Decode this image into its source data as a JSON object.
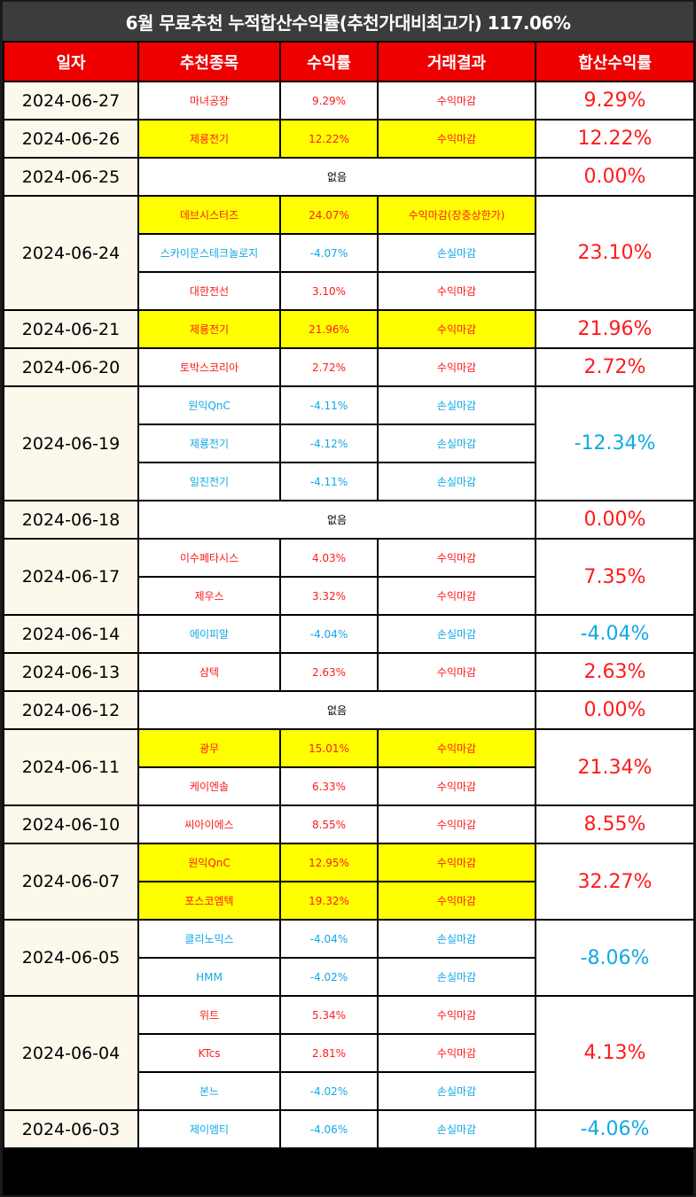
{
  "title": "6월 무료추천 누적합산수익률(추천가대비최고가) 117.06%",
  "headers": [
    "일자",
    "추천종목",
    "수익률",
    "거래결과",
    "합산수익률"
  ],
  "colors": {
    "header_bg": "#ee0000",
    "profit": "#ff1a1a",
    "loss": "#10a8e6",
    "highlight": "#ffff00",
    "date_bg": "#fcf9ec"
  },
  "none_label": "없음",
  "groups": [
    {
      "date": "2024-06-27",
      "total": "9.29%",
      "total_sign": "pos",
      "stocks": [
        {
          "name": "마녀공장",
          "return": "9.29%",
          "result": "수익마감",
          "sign": "pos",
          "hl": false
        }
      ]
    },
    {
      "date": "2024-06-26",
      "total": "12.22%",
      "total_sign": "pos",
      "stocks": [
        {
          "name": "제룡전기",
          "return": "12.22%",
          "result": "수익마감",
          "sign": "pos",
          "hl": true
        }
      ]
    },
    {
      "date": "2024-06-25",
      "total": "0.00%",
      "total_sign": "pos",
      "none": true,
      "stocks": []
    },
    {
      "date": "2024-06-24",
      "total": "23.10%",
      "total_sign": "pos",
      "stocks": [
        {
          "name": "데브시스터즈",
          "return": "24.07%",
          "result": "수익마감(장중상한가)",
          "sign": "pos",
          "hl": true
        },
        {
          "name": "스카이문스테크놀로지",
          "return": "-4.07%",
          "result": "손실마감",
          "sign": "neg",
          "hl": false
        },
        {
          "name": "대한전선",
          "return": "3.10%",
          "result": "수익마감",
          "sign": "pos",
          "hl": false
        }
      ]
    },
    {
      "date": "2024-06-21",
      "total": "21.96%",
      "total_sign": "pos",
      "stocks": [
        {
          "name": "제룡전기",
          "return": "21.96%",
          "result": "수익마감",
          "sign": "pos",
          "hl": true
        }
      ]
    },
    {
      "date": "2024-06-20",
      "total": "2.72%",
      "total_sign": "pos",
      "stocks": [
        {
          "name": "토박스코리아",
          "return": "2.72%",
          "result": "수익마감",
          "sign": "pos",
          "hl": false
        }
      ]
    },
    {
      "date": "2024-06-19",
      "total": "-12.34%",
      "total_sign": "neg",
      "stocks": [
        {
          "name": "원익QnC",
          "return": "-4.11%",
          "result": "손실마감",
          "sign": "neg",
          "hl": false
        },
        {
          "name": "제룡전기",
          "return": "-4.12%",
          "result": "손실마감",
          "sign": "neg",
          "hl": false
        },
        {
          "name": "일진전기",
          "return": "-4.11%",
          "result": "손실마감",
          "sign": "neg",
          "hl": false
        }
      ]
    },
    {
      "date": "2024-06-18",
      "total": "0.00%",
      "total_sign": "pos",
      "none": true,
      "stocks": []
    },
    {
      "date": "2024-06-17",
      "total": "7.35%",
      "total_sign": "pos",
      "stocks": [
        {
          "name": "이수페타시스",
          "return": "4.03%",
          "result": "수익마감",
          "sign": "pos",
          "hl": false
        },
        {
          "name": "제우스",
          "return": "3.32%",
          "result": "수익마감",
          "sign": "pos",
          "hl": false
        }
      ]
    },
    {
      "date": "2024-06-14",
      "total": "-4.04%",
      "total_sign": "neg",
      "stocks": [
        {
          "name": "에이피알",
          "return": "-4.04%",
          "result": "손실마감",
          "sign": "neg",
          "hl": false
        }
      ]
    },
    {
      "date": "2024-06-13",
      "total": "2.63%",
      "total_sign": "pos",
      "stocks": [
        {
          "name": "삼텍",
          "return": "2.63%",
          "result": "수익마감",
          "sign": "pos",
          "hl": false
        }
      ]
    },
    {
      "date": "2024-06-12",
      "total": "0.00%",
      "total_sign": "pos",
      "none": true,
      "stocks": []
    },
    {
      "date": "2024-06-11",
      "total": "21.34%",
      "total_sign": "pos",
      "stocks": [
        {
          "name": "광무",
          "return": "15.01%",
          "result": "수익마감",
          "sign": "pos",
          "hl": true
        },
        {
          "name": "케이엔솔",
          "return": "6.33%",
          "result": "수익마감",
          "sign": "pos",
          "hl": false
        }
      ]
    },
    {
      "date": "2024-06-10",
      "total": "8.55%",
      "total_sign": "pos",
      "stocks": [
        {
          "name": "씨아이에스",
          "return": "8.55%",
          "result": "수익마감",
          "sign": "pos",
          "hl": false
        }
      ]
    },
    {
      "date": "2024-06-07",
      "total": "32.27%",
      "total_sign": "pos",
      "stocks": [
        {
          "name": "원익QnC",
          "return": "12.95%",
          "result": "수익마감",
          "sign": "pos",
          "hl": true
        },
        {
          "name": "포스코엠텍",
          "return": "19.32%",
          "result": "수익마감",
          "sign": "pos",
          "hl": true
        }
      ]
    },
    {
      "date": "2024-06-05",
      "total": "-8.06%",
      "total_sign": "neg",
      "stocks": [
        {
          "name": "클리노믹스",
          "return": "-4.04%",
          "result": "손실마감",
          "sign": "neg",
          "hl": false
        },
        {
          "name": "HMM",
          "return": "-4.02%",
          "result": "손실마감",
          "sign": "neg",
          "hl": false
        }
      ]
    },
    {
      "date": "2024-06-04",
      "total": "4.13%",
      "total_sign": "pos",
      "stocks": [
        {
          "name": "위트",
          "return": "5.34%",
          "result": "수익마감",
          "sign": "pos",
          "hl": false
        },
        {
          "name": "KTcs",
          "return": "2.81%",
          "result": "수익마감",
          "sign": "pos",
          "hl": false
        },
        {
          "name": "본느",
          "return": "-4.02%",
          "result": "손실마감",
          "sign": "neg",
          "hl": false
        }
      ]
    },
    {
      "date": "2024-06-03",
      "total": "-4.06%",
      "total_sign": "neg",
      "stocks": [
        {
          "name": "제이엠티",
          "return": "-4.06%",
          "result": "손실마감",
          "sign": "neg",
          "hl": false
        }
      ]
    }
  ]
}
